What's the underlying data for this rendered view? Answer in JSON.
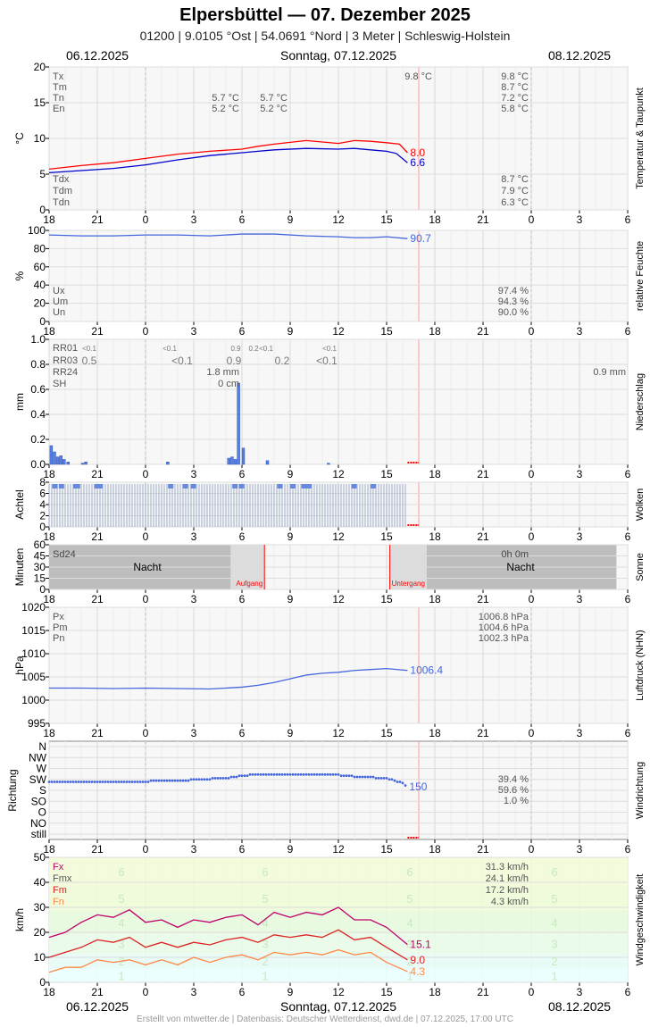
{
  "header": {
    "title": "Elpersbüttel  —  07. Dezember 2025",
    "subtitle": "01200  |  9.0105 °Ost  |  54.0691 °Nord  |  3 Meter  |  Schleswig-Holstein",
    "date_prev": "06.12.2025",
    "date_current": "Sonntag, 07.12.2025",
    "date_next": "08.12.2025"
  },
  "footer": {
    "text": "Erstellt von mtwetter.de | Datenbasis: Deutscher Wetterdienst, dwd.de | 07.12.2025, 17:00 UTC"
  },
  "colors": {
    "temperature": "#ff0000",
    "dewpoint": "#0000cc",
    "humidity": "#4466dd",
    "pressure": "#4466dd",
    "precip": "#5580e0",
    "clouds": "#6688dd",
    "wind_fx": "#c0006a",
    "wind_fm": "#dd2222",
    "wind_fn": "#ff8844",
    "now_line": "#ffaaaa"
  },
  "chart_data": [
    {
      "type": "line",
      "ylabel": "°C",
      "right_label": "Temperatur & Taupunkt",
      "x_ticks": [
        "18",
        "21",
        "0",
        "3",
        "6",
        "9",
        "12",
        "15",
        "18",
        "21",
        "0",
        "3",
        "6"
      ],
      "ylim": [
        0,
        20
      ],
      "y_ticks": [
        0,
        5,
        10,
        15,
        20
      ],
      "x_range_hours": [
        0,
        36
      ],
      "now_hour": 23,
      "series": [
        {
          "name": "Temperatur",
          "x": [
            0,
            2,
            4,
            6,
            8,
            10,
            12,
            13,
            14,
            16,
            18,
            19,
            20,
            21,
            21.8,
            22.3
          ],
          "values": [
            5.7,
            6.2,
            6.6,
            7.2,
            7.8,
            8.2,
            8.5,
            8.9,
            9.2,
            9.7,
            9.3,
            9.7,
            9.6,
            9.4,
            9.2,
            8.0
          ]
        },
        {
          "name": "Taupunkt",
          "x": [
            0,
            2,
            4,
            6,
            8,
            10,
            12,
            13,
            14,
            16,
            18,
            19,
            20,
            21,
            21.6,
            22.3
          ],
          "values": [
            5.2,
            5.5,
            5.8,
            6.3,
            7.0,
            7.6,
            8.0,
            8.2,
            8.4,
            8.6,
            8.5,
            8.6,
            8.4,
            8.2,
            7.9,
            6.6
          ]
        }
      ],
      "end_labels": [
        "8.0",
        "6.6"
      ],
      "stats_top": [
        {
          "label": "Tx",
          "col1": "",
          "col2": "",
          "now": "9.8 °C",
          "day": "9.8 °C"
        },
        {
          "label": "Tm",
          "col1": "",
          "col2": "",
          "now": "",
          "day": "8.7 °C"
        },
        {
          "label": "Tn",
          "col1": "5.7 °C",
          "col2": "5.7 °C",
          "now": "",
          "day": "7.2 °C"
        },
        {
          "label": "En",
          "col1": "5.2 °C",
          "col2": "5.2 °C",
          "now": "",
          "day": "5.8 °C"
        }
      ],
      "stats_bottom": [
        {
          "label": "Tdx",
          "day": "8.7 °C"
        },
        {
          "label": "Tdm",
          "day": "7.9 °C"
        },
        {
          "label": "Tdn",
          "day": "6.3 °C"
        }
      ]
    },
    {
      "type": "line",
      "ylabel": "%",
      "right_label": "relative Feuchte",
      "ylim": [
        0,
        100
      ],
      "y_ticks": [
        0,
        20,
        40,
        60,
        80,
        100
      ],
      "series": [
        {
          "name": "Feuchte",
          "x": [
            0,
            2,
            4,
            6,
            8,
            10,
            12,
            14,
            16,
            18,
            19,
            20,
            21,
            22.3
          ],
          "values": [
            95,
            94,
            94,
            95,
            95,
            94,
            96,
            96,
            94,
            93,
            92,
            92,
            93,
            91
          ]
        }
      ],
      "end_labels": [
        "90.7"
      ],
      "stats": [
        {
          "label": "Ux",
          "day": "97.4 %"
        },
        {
          "label": "Um",
          "day": "94.3 %"
        },
        {
          "label": "Un",
          "day": "90.0 %"
        }
      ]
    },
    {
      "type": "bar",
      "ylabel": "mm",
      "right_label": "Niederschlag",
      "ylim": [
        0,
        1.0
      ],
      "y_ticks": [
        "0.0",
        "0.2",
        "0.4",
        "0.6",
        "0.8",
        "1.0"
      ],
      "bars": [
        {
          "x": 0.05,
          "v": 0.15
        },
        {
          "x": 0.25,
          "v": 0.1
        },
        {
          "x": 0.45,
          "v": 0.06
        },
        {
          "x": 0.65,
          "v": 0.07
        },
        {
          "x": 0.85,
          "v": 0.04
        },
        {
          "x": 1.1,
          "v": 0.02
        },
        {
          "x": 2.0,
          "v": 0.01
        },
        {
          "x": 2.2,
          "v": 0.02
        },
        {
          "x": 7.3,
          "v": 0.02
        },
        {
          "x": 11.1,
          "v": 0.05
        },
        {
          "x": 11.3,
          "v": 0.06
        },
        {
          "x": 11.5,
          "v": 0.04
        },
        {
          "x": 11.7,
          "v": 0.65
        },
        {
          "x": 12.0,
          "v": 0.13
        },
        {
          "x": 13.5,
          "v": 0.03
        },
        {
          "x": 17.3,
          "v": 0.01
        }
      ],
      "stats": [
        {
          "label": "RR01",
          "vals": [
            "<0.1",
            "<0.1",
            "0.9",
            "0.2",
            "<0.1",
            "<0.1"
          ]
        },
        {
          "label": "RR03",
          "vals": [
            "0.5",
            "<0.1",
            "0.9",
            "0.2",
            "<0.1"
          ]
        },
        {
          "label": "RR24",
          "vals": [
            "1.8 mm",
            "0.9 mm"
          ]
        },
        {
          "label": "SH",
          "vals": [
            "0 cm"
          ]
        }
      ]
    },
    {
      "type": "bar",
      "ylabel": "Achtel",
      "right_label": "Wolken",
      "ylim": [
        0,
        8
      ],
      "y_ticks": [
        0,
        2,
        4,
        6,
        8
      ],
      "cloud_octas": 8
    },
    {
      "type": "area",
      "ylabel": "Minuten",
      "right_label": "Sonne",
      "ylim": [
        0,
        60
      ],
      "y_ticks": [
        0,
        15,
        30,
        45,
        60
      ],
      "night_label": "Nacht",
      "sunrise_label": "Aufgang",
      "sunset_label": "Untergang",
      "sunrise_hour": 13.4,
      "sunset_hour": 21.2,
      "stats": [
        {
          "label": "Sd24",
          "day": "0h 0m"
        }
      ]
    },
    {
      "type": "line",
      "ylabel": "hPa",
      "right_label": "Luftdruck (NHN)",
      "ylim": [
        995,
        1020
      ],
      "y_ticks": [
        995,
        1000,
        1005,
        1010,
        1015,
        1020
      ],
      "series": [
        {
          "name": "Luftdruck",
          "x": [
            0,
            2,
            4,
            6,
            8,
            10,
            12,
            13,
            14,
            15,
            16,
            17,
            18,
            19,
            20,
            21,
            22.3
          ],
          "values": [
            1002.6,
            1002.6,
            1002.5,
            1002.6,
            1002.5,
            1002.4,
            1002.8,
            1003.2,
            1003.8,
            1004.6,
            1005.4,
            1005.8,
            1006.0,
            1006.4,
            1006.6,
            1006.8,
            1006.4
          ]
        }
      ],
      "end_labels": [
        "1006.4"
      ],
      "stats": [
        {
          "label": "Px",
          "day": "1006.8 hPa"
        },
        {
          "label": "Pm",
          "day": "1004.6 hPa"
        },
        {
          "label": "Pn",
          "day": "1002.3 hPa"
        }
      ]
    },
    {
      "type": "scatter",
      "ylabel": "Richtung",
      "right_label": "Windrichtung",
      "y_categories": [
        "still",
        "NO",
        "O",
        "SO",
        "S",
        "SW",
        "W",
        "NW",
        "N"
      ],
      "series": [
        {
          "name": "Richtung",
          "x": [
            0,
            2,
            4,
            6,
            8,
            9,
            10,
            11,
            12,
            13,
            14,
            15,
            16,
            17,
            18,
            19,
            20,
            21,
            22,
            22.3
          ],
          "values": [
            170,
            170,
            170,
            172,
            175,
            178,
            182,
            186,
            195,
            202,
            202,
            200,
            200,
            202,
            198,
            192,
            188,
            186,
            165,
            150
          ]
        }
      ],
      "end_labels": [
        "150"
      ],
      "stats": [
        {
          "label": "",
          "day": "39.4 %"
        },
        {
          "label": "",
          "day": "59.6 %"
        },
        {
          "label": "",
          "day": "1.0 %"
        }
      ]
    },
    {
      "type": "line",
      "ylabel": "km/h",
      "right_label": "Windgeschwindigkeit",
      "ylim": [
        0,
        50
      ],
      "y_ticks": [
        0,
        10,
        20,
        30,
        40,
        50
      ],
      "beaufort": [
        "1",
        "2",
        "3",
        "4",
        "5",
        "6"
      ],
      "series": [
        {
          "name": "Fx",
          "x": [
            0,
            1,
            2,
            3,
            4,
            5,
            6,
            7,
            8,
            9,
            10,
            11,
            12,
            13,
            14,
            15,
            16,
            17,
            18,
            19,
            20,
            21,
            22.3
          ],
          "values": [
            18,
            20,
            24,
            27,
            26,
            29,
            24,
            25,
            22,
            25,
            24,
            26,
            27,
            23,
            28,
            26,
            28,
            27,
            30,
            25,
            25,
            22,
            15.1
          ]
        },
        {
          "name": "Fm",
          "x": [
            0,
            1,
            2,
            3,
            4,
            5,
            6,
            7,
            8,
            9,
            10,
            11,
            12,
            13,
            14,
            15,
            16,
            17,
            18,
            19,
            20,
            21,
            22.3
          ],
          "values": [
            10,
            12,
            14,
            17,
            16,
            18,
            14,
            16,
            14,
            16,
            15,
            17,
            18,
            16,
            19,
            18,
            19,
            18,
            21,
            17,
            18,
            14,
            9.0
          ]
        },
        {
          "name": "Fn",
          "x": [
            0,
            1,
            2,
            3,
            4,
            5,
            6,
            7,
            8,
            9,
            10,
            11,
            12,
            13,
            14,
            15,
            16,
            17,
            18,
            19,
            20,
            21,
            22.3
          ],
          "values": [
            4,
            6,
            6,
            9,
            8,
            9,
            7,
            9,
            7,
            10,
            8,
            10,
            11,
            9,
            12,
            11,
            12,
            11,
            13,
            11,
            12,
            8,
            4.3
          ]
        }
      ],
      "end_labels": [
        "15.1",
        "9.0",
        "4.3"
      ],
      "stats": [
        {
          "label": "Fx",
          "day": "31.3 km/h"
        },
        {
          "label": "Fmx",
          "day": "24.1 km/h"
        },
        {
          "label": "Fm",
          "day": "17.2 km/h"
        },
        {
          "label": "Fn",
          "day": "4.3 km/h"
        }
      ]
    }
  ]
}
